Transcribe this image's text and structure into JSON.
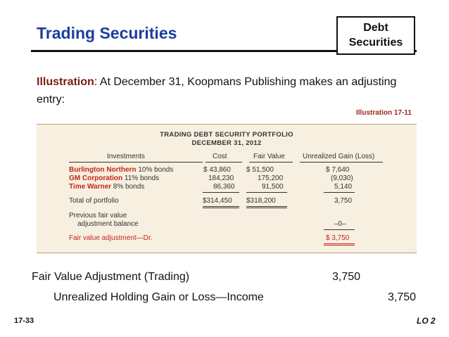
{
  "header": {
    "title": "Trading Securities",
    "tag_line1": "Debt",
    "tag_line2": "Securities"
  },
  "intro": {
    "label": "Illustration",
    "text": ":  At December 31, Koopmans Publishing makes an adjusting entry:"
  },
  "illustration_ref": "Illustration 17-11",
  "table": {
    "title1": "TRADING DEBT SECURITY PORTFOLIO",
    "title2": "DECEMBER 31, 2012",
    "headers": [
      "Investments",
      "Cost",
      "Fair Value",
      "Unrealized Gain (Loss)"
    ],
    "rows": [
      {
        "name": "Burlington Northern",
        "desc": " 10% bonds",
        "cost": "$ 43,860",
        "fv": "$  51,500",
        "gain": "$ 7,640"
      },
      {
        "name": "GM Corporation",
        "desc": " 11% bonds",
        "cost": "184,230",
        "fv": "175,200",
        "gain": "(9,030)"
      },
      {
        "name": "Time Warner",
        "desc": " 8% bonds",
        "cost": "86,360",
        "fv": "91,500",
        "gain": "5,140"
      }
    ],
    "total": {
      "label": "Total of portfolio",
      "cost": "$314,450",
      "fv": "$318,200",
      "gain": "3,750"
    },
    "prev1": "Previous fair value",
    "prev2": "adjustment balance",
    "prev_gain": "–0–",
    "adj_label": "Fair value adjustment—Dr.",
    "adj_gain": "$ 3,750"
  },
  "entry": {
    "debit_account": "Fair Value Adjustment (Trading)",
    "debit_amount": "3,750",
    "credit_account": "Unrealized Holding Gain or Loss—Income",
    "credit_amount": "3,750"
  },
  "footer": {
    "slide": "17-33",
    "lo": "LO 2"
  }
}
